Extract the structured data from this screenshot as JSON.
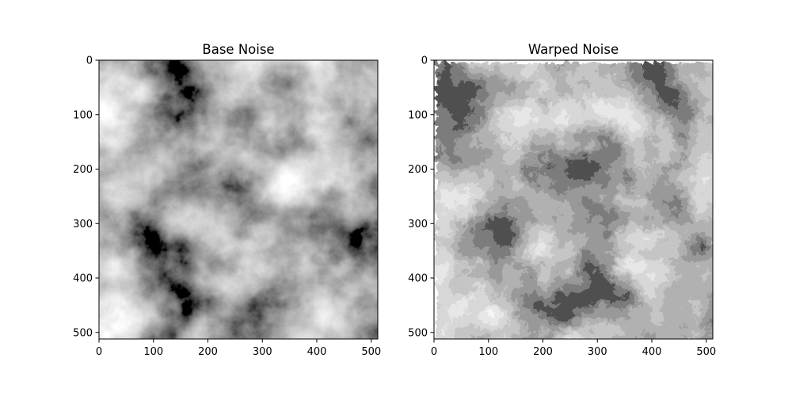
{
  "chart_data": [
    {
      "type": "heatmap",
      "title": "Base Noise",
      "colormap": "gray",
      "image_shape": [
        512,
        512
      ],
      "xlim": [
        0,
        512
      ],
      "ylim": [
        512,
        0
      ],
      "xticks": [
        0,
        100,
        200,
        300,
        400,
        500
      ],
      "yticks": [
        0,
        100,
        200,
        300,
        400,
        500
      ],
      "xtick_labels": [
        "0",
        "100",
        "200",
        "300",
        "400",
        "500"
      ],
      "ytick_labels": [
        "0",
        "100",
        "200",
        "300",
        "400",
        "500"
      ]
    },
    {
      "type": "heatmap",
      "title": "Warped Noise",
      "colormap": "gray",
      "image_shape": [
        512,
        512
      ],
      "xlim": [
        0,
        512
      ],
      "ylim": [
        512,
        0
      ],
      "xticks": [
        0,
        100,
        200,
        300,
        400,
        500
      ],
      "yticks": [
        0,
        100,
        200,
        300,
        400,
        500
      ],
      "xtick_labels": [
        "0",
        "100",
        "200",
        "300",
        "400",
        "500"
      ],
      "ytick_labels": [
        "0",
        "100",
        "200",
        "300",
        "400",
        "500"
      ]
    }
  ],
  "colors": {
    "background": "#ffffff",
    "axis": "#000000",
    "dark": "#0a0a0a",
    "light": "#f2f2f2"
  }
}
